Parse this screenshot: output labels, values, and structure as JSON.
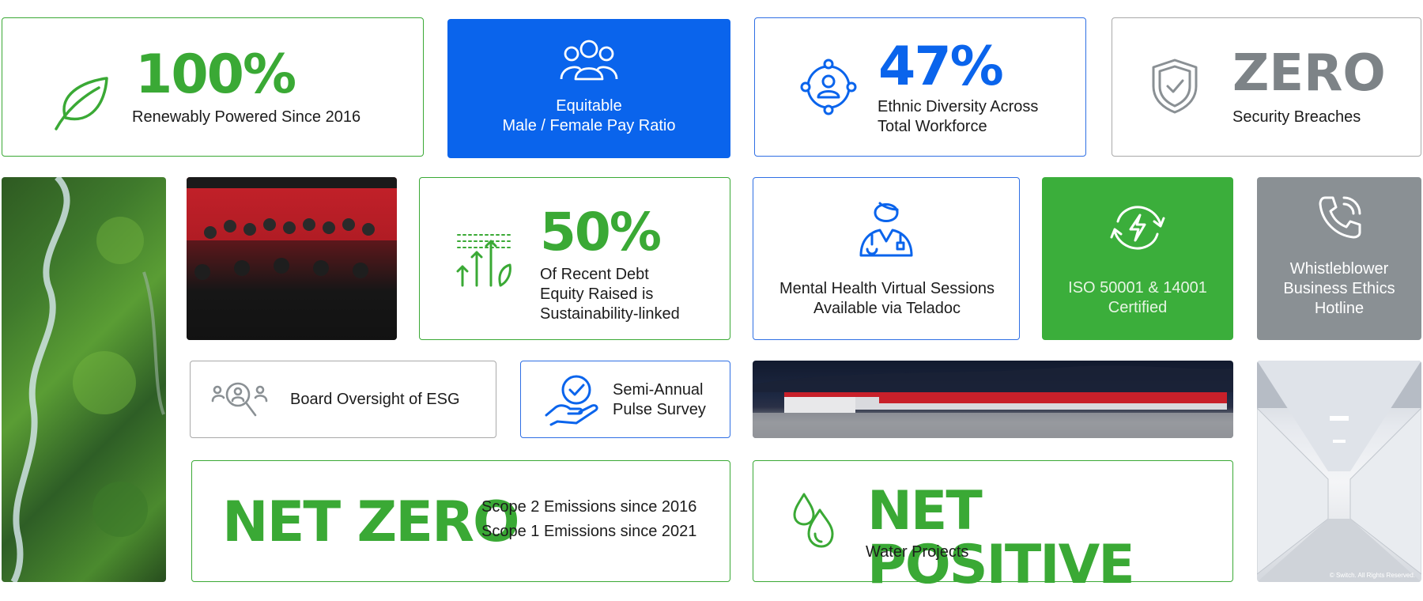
{
  "colors": {
    "green": "#3aa935",
    "blue": "#0a64ec",
    "gray": "#8a9094",
    "dark_gray": "#7d8387"
  },
  "cards": {
    "renewable": {
      "stat": "100%",
      "text": "Renewably Powered Since 2016",
      "icon": "leaf-icon"
    },
    "pay_ratio": {
      "line1": "Equitable",
      "line2": "Male / Female Pay Ratio",
      "icon": "people-group-icon"
    },
    "diversity": {
      "stat": "47%",
      "line1": "Ethnic Diversity Across",
      "line2": "Total Workforce",
      "icon": "diversity-network-icon"
    },
    "security": {
      "stat": "ZERO",
      "text": "Security Breaches",
      "icon": "shield-check-icon"
    },
    "debt": {
      "stat": "50%",
      "line1": "Of Recent Debt",
      "line2": "Equity Raised is",
      "line3": "Sustainability-linked",
      "icon": "growth-arrows-icon"
    },
    "mental_health": {
      "line1": "Mental Health Virtual Sessions",
      "line2": "Available via Teladoc",
      "icon": "doctor-icon"
    },
    "iso": {
      "line1": "ISO 50001 & 14001",
      "line2": "Certified",
      "icon": "energy-cycle-icon"
    },
    "whistleblower": {
      "line1": "Whistleblower",
      "line2": "Business Ethics",
      "line3": "Hotline",
      "icon": "phone-icon"
    },
    "board": {
      "text": "Board Oversight of ESG",
      "icon": "search-people-icon"
    },
    "pulse": {
      "line1": "Semi-Annual",
      "line2": "Pulse Survey",
      "icon": "hand-check-icon"
    },
    "net_zero": {
      "stat": "NET ZERO",
      "line1": "Scope 2 Emissions since 2016",
      "line2": "Scope 1 Emissions since 2021"
    },
    "net_positive": {
      "stat": "NET POSITIVE",
      "text": "Water Projects",
      "icon": "water-drops-icon"
    }
  },
  "photos": {
    "copyright": "© Switch. All Rights Reserved."
  }
}
